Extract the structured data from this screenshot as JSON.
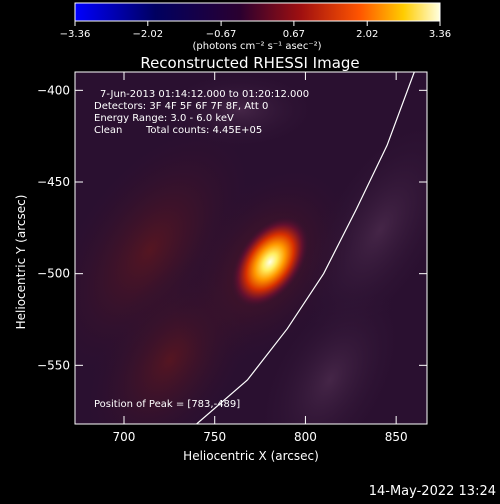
{
  "colorbar": {
    "ticks": [
      "-3.36",
      "-2.02",
      "-0.67",
      "0.67",
      "2.02",
      "3.36"
    ],
    "unit_label": "(photons cm⁻² s⁻¹ asec⁻²)",
    "range": [
      -3.36,
      3.36
    ]
  },
  "chart_data": {
    "type": "heatmap",
    "title": "Reconstructed RHESSI Image",
    "xlabel": "Heliocentric X (arcsec)",
    "ylabel": "Heliocentric Y (arcsec)",
    "xlim": [
      673,
      867
    ],
    "ylim": [
      -582,
      -390
    ],
    "xticks": [
      700,
      750,
      800,
      850
    ],
    "yticks": [
      -400,
      -450,
      -500,
      -550
    ],
    "annotations": [
      "7-Jun-2013 01:14:12.000 to 01:20:12.000",
      "Detectors: 3F 4F 5F 6F 7F 8F, Att 0",
      "Energy Range: 3.0 - 6.0 keV",
      "Clean",
      "Total counts: 4.45E+05"
    ],
    "peak_label": "Position of Peak = [783,-489]",
    "peak": {
      "x": 783,
      "y": -489,
      "value": 3.36
    },
    "limb": [
      [
        860,
        -390
      ],
      [
        845,
        -430
      ],
      [
        828,
        -465
      ],
      [
        810,
        -500
      ],
      [
        790,
        -530
      ],
      [
        768,
        -558
      ],
      [
        740,
        -582
      ]
    ]
  },
  "footer_timestamp": "14-May-2022 13:24"
}
